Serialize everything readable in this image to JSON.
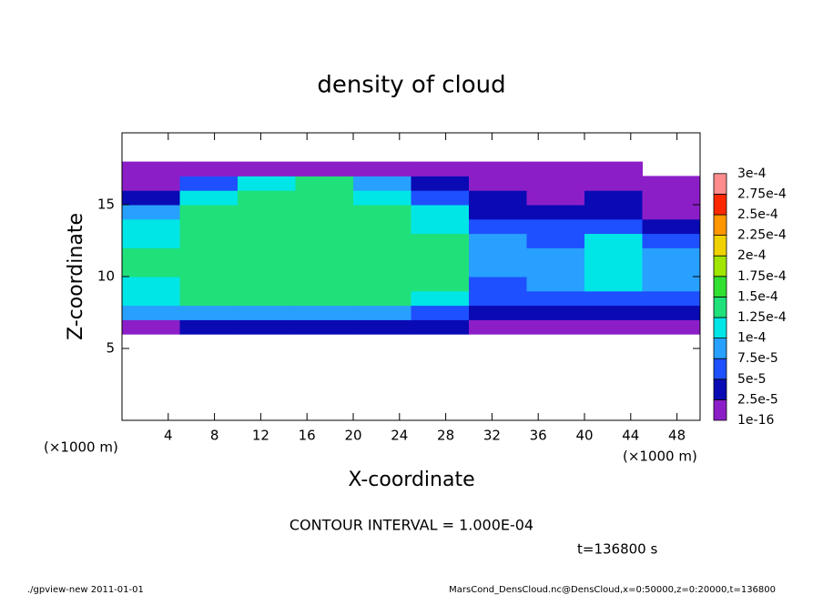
{
  "chart_data": {
    "type": "heatmap",
    "title": "density of cloud",
    "x_label": "X-coordinate",
    "y_label": "Z-coordinate",
    "x_unit_label": "(×1000 m)",
    "x_unit_label_right": "(×1000 m)",
    "contour_note": "CONTOUR INTERVAL = 1.000E-04",
    "time_note": "t=136800 s",
    "footer_left": "./gpview-new  2011-01-01",
    "footer_right": "MarsCond_DensCloud.nc@DensCloud,x=0:50000,z=0:20000,t=136800",
    "xlim": [
      0,
      50
    ],
    "ylim": [
      0,
      20
    ],
    "xticks": [
      4,
      8,
      12,
      16,
      20,
      24,
      28,
      32,
      36,
      40,
      44,
      48
    ],
    "yticks": [
      5,
      10,
      15
    ],
    "x_edges": [
      0,
      5,
      10,
      15,
      20,
      25,
      30,
      35,
      40,
      45,
      50
    ],
    "z_edges": [
      6,
      7,
      8,
      9,
      10,
      11,
      12,
      13,
      14,
      15,
      16,
      17,
      18
    ],
    "values": [
      [
        2e-05,
        4e-05,
        4e-05,
        4e-05,
        4e-05,
        3e-05,
        1e-05,
        1e-05,
        2e-05,
        1e-05
      ],
      [
        8e-05,
        9e-05,
        9e-05,
        9e-05,
        9e-05,
        7e-05,
        3e-05,
        3e-05,
        3e-05,
        3e-05
      ],
      [
        0.00011,
        0.00013,
        0.000135,
        0.000135,
        0.00013,
        0.00012,
        5e-05,
        5e-05,
        5e-05,
        5e-05
      ],
      [
        0.00012,
        0.00014,
        0.000145,
        0.000145,
        0.00014,
        0.00013,
        7e-05,
        8e-05,
        0.0001,
        8e-05
      ],
      [
        0.000125,
        0.000145,
        0.000145,
        0.000145,
        0.000145,
        0.000135,
        9e-05,
        9e-05,
        0.00011,
        9e-05
      ],
      [
        0.000125,
        0.000145,
        0.000145,
        0.000145,
        0.00014,
        0.000135,
        9e-05,
        8e-05,
        0.00011,
        8e-05
      ],
      [
        0.00012,
        0.00014,
        0.000145,
        0.000145,
        0.00014,
        0.00013,
        8e-05,
        6e-05,
        0.0001,
        6e-05
      ],
      [
        0.00011,
        0.00014,
        0.00014,
        0.00014,
        0.000135,
        0.00012,
        7e-05,
        5e-05,
        6e-05,
        3e-05
      ],
      [
        8e-05,
        0.00013,
        0.00014,
        0.00014,
        0.00013,
        0.00011,
        4e-05,
        3e-05,
        4e-05,
        2e-05
      ],
      [
        4e-05,
        0.00011,
        0.000135,
        0.000135,
        0.00012,
        6e-05,
        3e-05,
        2e-05,
        3e-05,
        1e-05
      ],
      [
        2e-05,
        5e-05,
        0.00012,
        0.00013,
        8e-05,
        3e-05,
        2e-05,
        2e-05,
        1e-05,
        1e-05
      ],
      [
        1e-05,
        1e-05,
        1e-05,
        1e-05,
        1e-05,
        1e-05,
        5e-06,
        1e-05,
        5e-06,
        0
      ]
    ],
    "levels": [
      {
        "value": 1e-16,
        "label": "1e-16"
      },
      {
        "value": 2.5e-05,
        "label": "2.5e-5"
      },
      {
        "value": 5e-05,
        "label": "5e-5"
      },
      {
        "value": 7.5e-05,
        "label": "7.5e-5"
      },
      {
        "value": 0.0001,
        "label": "1e-4"
      },
      {
        "value": 0.000125,
        "label": "1.25e-4"
      },
      {
        "value": 0.00015,
        "label": "1.5e-4"
      },
      {
        "value": 0.000175,
        "label": "1.75e-4"
      },
      {
        "value": 0.0002,
        "label": "2e-4"
      },
      {
        "value": 0.000225,
        "label": "2.25e-4"
      },
      {
        "value": 0.00025,
        "label": "2.5e-4"
      },
      {
        "value": 0.000275,
        "label": "2.75e-4"
      },
      {
        "value": 0.0003,
        "label": "3e-4"
      }
    ],
    "colors": [
      "#8c1ec8",
      "#0a0ab4",
      "#1e50ff",
      "#28a0ff",
      "#00e6e6",
      "#20e07a",
      "#32e032",
      "#a0e600",
      "#f0d200",
      "#ff9600",
      "#ff2800",
      "#ff8c8c"
    ]
  }
}
